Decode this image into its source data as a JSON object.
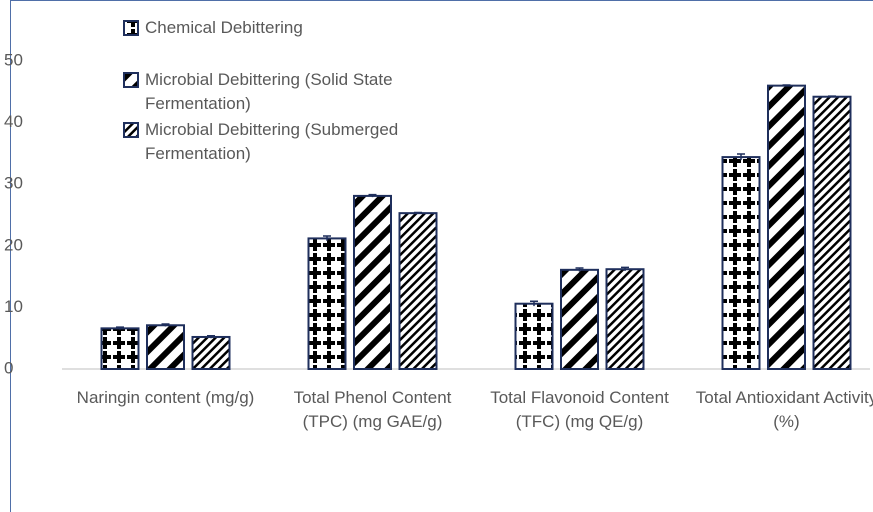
{
  "chart_data": {
    "type": "bar",
    "categories": [
      "Naringin content (mg/g)",
      "Total Phenol Content (TPC) (mg GAE/g)",
      "Total Flavonoid Content (TFC) (mg QE/g)",
      "Total Antioxidant Activity (%)"
    ],
    "series": [
      {
        "name": "Chemical Debittering",
        "color": "#000000",
        "values": [
          6.6,
          21.2,
          10.6,
          34.4
        ],
        "errors": [
          0.2,
          0.4,
          0.4,
          0.5
        ]
      },
      {
        "name": "Microbial Debittering (Solid State Fermentation)",
        "color": "#000000",
        "values": [
          7.1,
          28.1,
          16.1,
          46.0
        ],
        "errors": [
          0.2,
          0.2,
          0.3,
          0.1
        ]
      },
      {
        "name": "Microbial Debittering (Submerged Fermentation)",
        "color": "#000000",
        "values": [
          5.2,
          25.3,
          16.2,
          44.2
        ],
        "errors": [
          0.2,
          0.1,
          0.3,
          0.1
        ]
      }
    ],
    "ylim": [
      0,
      50
    ],
    "yticks": [
      0,
      10,
      20,
      30,
      40,
      50
    ],
    "grid": false,
    "legend": "top-left"
  }
}
